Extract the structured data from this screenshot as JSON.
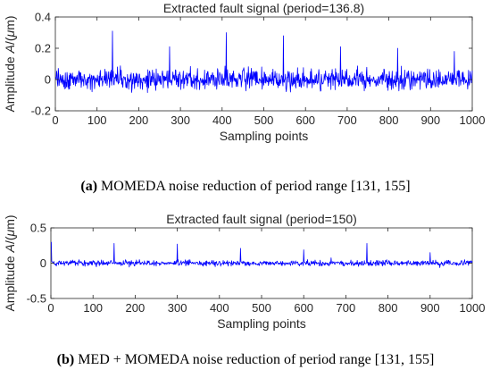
{
  "chart_data": [
    {
      "type": "line",
      "title": "Extracted fault signal (period=136.8)",
      "xlabel": "Sampling points",
      "ylabel_prefix": "Amplitude ",
      "ylabel_var": "A",
      "ylabel_suffix": "/(",
      "ylabel_mu": "μ",
      "ylabel_unit": "m)",
      "xlim": [
        0,
        1000
      ],
      "ylim": [
        -0.2,
        0.4
      ],
      "xticks": [
        0,
        100,
        200,
        300,
        400,
        500,
        600,
        700,
        800,
        900,
        1000
      ],
      "yticks": [
        -0.2,
        0,
        0.2,
        0.4
      ],
      "ytick_labels": [
        "-0.2",
        "0",
        "0.2",
        "0.4"
      ],
      "color": "#0000ff",
      "noise_amplitude": 0.05,
      "impulses": [
        {
          "x": 137,
          "y": 0.31
        },
        {
          "x": 274,
          "y": 0.21
        },
        {
          "x": 410,
          "y": 0.3
        },
        {
          "x": 547,
          "y": 0.28
        },
        {
          "x": 684,
          "y": 0.21
        },
        {
          "x": 821,
          "y": 0.2
        },
        {
          "x": 957,
          "y": 0.18
        }
      ],
      "caption_label": "(a)",
      "caption_text": " MOMEDA noise reduction of period range [131, 155]"
    },
    {
      "type": "line",
      "title": "Extracted fault signal (period=150)",
      "xlabel": "Sampling points",
      "ylabel_prefix": "Amplitude ",
      "ylabel_var": "A",
      "ylabel_suffix": "/(",
      "ylabel_mu": "μ",
      "ylabel_unit": "m)",
      "xlim": [
        0,
        1000
      ],
      "ylim": [
        -0.5,
        0.5
      ],
      "xticks": [
        0,
        100,
        200,
        300,
        400,
        500,
        600,
        700,
        800,
        900,
        1000
      ],
      "yticks": [
        -0.5,
        0,
        0.5
      ],
      "ytick_labels": [
        "-0.5",
        "0",
        "0.5"
      ],
      "color": "#0000ff",
      "noise_amplitude": 0.03,
      "impulses": [
        {
          "x": 1,
          "y": 0.3
        },
        {
          "x": 150,
          "y": 0.28
        },
        {
          "x": 300,
          "y": 0.27
        },
        {
          "x": 450,
          "y": 0.21
        },
        {
          "x": 600,
          "y": 0.19
        },
        {
          "x": 750,
          "y": 0.28
        },
        {
          "x": 900,
          "y": 0.15
        }
      ],
      "caption_label": "(b)",
      "caption_text": " MED + MOMEDA noise reduction of period range [131, 155]"
    }
  ]
}
